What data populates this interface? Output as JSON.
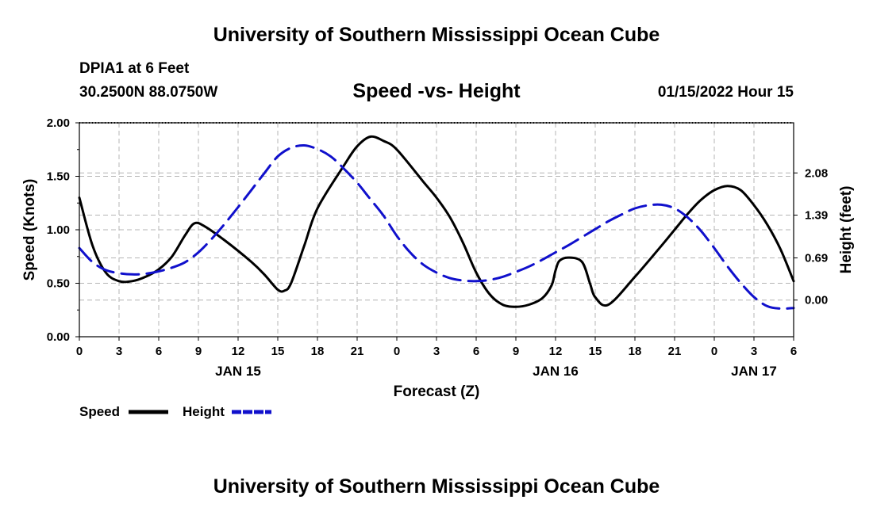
{
  "header": {
    "main_title": "University of Southern Mississippi Ocean Cube",
    "station": "DPIA1 at 6 Feet",
    "coords": "30.2500N  88.0750W",
    "subtitle": "Speed -vs- Height",
    "datetime": "01/15/2022 Hour 15"
  },
  "footer": {
    "title": "University of Southern Mississippi Ocean Cube"
  },
  "colors": {
    "speed": "#000000",
    "height": "#1010cc",
    "grid": "#b4b4b4"
  },
  "chart_data": {
    "type": "line",
    "title": "Speed -vs- Height",
    "xlabel": "Forecast (Z)",
    "ylabel": "Speed (Knots)",
    "y2label": "Height (feet)",
    "xlim": [
      0,
      54
    ],
    "ylim": [
      0,
      2.0
    ],
    "y2lim": [
      -0.6,
      2.9
    ],
    "x_ticks": [
      0,
      3,
      6,
      9,
      12,
      15,
      18,
      21,
      24,
      27,
      30,
      33,
      36,
      39,
      42,
      45,
      48,
      51,
      54
    ],
    "x_tick_labels": [
      "0",
      "3",
      "6",
      "9",
      "12",
      "15",
      "18",
      "21",
      "0",
      "3",
      "6",
      "9",
      "12",
      "15",
      "18",
      "21",
      "0",
      "3",
      "6"
    ],
    "date_labels": [
      {
        "x": 12,
        "label": "JAN 15"
      },
      {
        "x": 36,
        "label": "JAN 16"
      },
      {
        "x": 51,
        "label": "JAN 17"
      }
    ],
    "y_ticks": [
      0,
      0.5,
      1.0,
      1.5,
      2.0
    ],
    "y_tick_labels": [
      "0.00",
      "0.50",
      "1.00",
      "1.50",
      "2.00"
    ],
    "y2_ticks": [
      0.0,
      0.69,
      1.39,
      2.08
    ],
    "y2_tick_labels": [
      "0.00",
      "0.69",
      "1.39",
      "2.08"
    ],
    "grid": true,
    "legend_position": "bottom-left",
    "series": [
      {
        "name": "Speed",
        "axis": "left",
        "style": "solid",
        "x": [
          0,
          1,
          2,
          3,
          4,
          5,
          6,
          7,
          8,
          8.7,
          9.5,
          11,
          13,
          14,
          15,
          15.5,
          16,
          17,
          18,
          20,
          21,
          22,
          23,
          24,
          26,
          27,
          28,
          29,
          30,
          31,
          32,
          33,
          34,
          35,
          35.7,
          36,
          36.3,
          37,
          38,
          38.6,
          39,
          40,
          42,
          44,
          45,
          46,
          47,
          48,
          49,
          50,
          51,
          52,
          53,
          54
        ],
        "values": [
          1.3,
          0.85,
          0.6,
          0.52,
          0.52,
          0.56,
          0.63,
          0.75,
          0.95,
          1.06,
          1.03,
          0.9,
          0.7,
          0.58,
          0.44,
          0.43,
          0.5,
          0.85,
          1.2,
          1.6,
          1.78,
          1.87,
          1.83,
          1.75,
          1.45,
          1.3,
          1.12,
          0.88,
          0.6,
          0.4,
          0.3,
          0.28,
          0.3,
          0.36,
          0.48,
          0.62,
          0.71,
          0.74,
          0.7,
          0.5,
          0.37,
          0.3,
          0.56,
          0.85,
          1.0,
          1.15,
          1.28,
          1.37,
          1.41,
          1.37,
          1.23,
          1.05,
          0.82,
          0.52
        ]
      },
      {
        "name": "Height",
        "axis": "right",
        "style": "dashed",
        "x": [
          0,
          1,
          2,
          3,
          4,
          5,
          6,
          7,
          8,
          9,
          10,
          11,
          12,
          13,
          14,
          15,
          16,
          17,
          18,
          19,
          20,
          21,
          22,
          23,
          24,
          25,
          26,
          27,
          28,
          29,
          30,
          31,
          32,
          33,
          34,
          35,
          36,
          37,
          38,
          39,
          40,
          41,
          42,
          43,
          44,
          45,
          46,
          47,
          48,
          49,
          50,
          51,
          52,
          53,
          54
        ],
        "values": [
          0.85,
          0.62,
          0.49,
          0.44,
          0.42,
          0.43,
          0.47,
          0.53,
          0.62,
          0.78,
          1.0,
          1.25,
          1.52,
          1.8,
          2.08,
          2.35,
          2.49,
          2.53,
          2.47,
          2.35,
          2.15,
          1.92,
          1.65,
          1.38,
          1.05,
          0.78,
          0.58,
          0.45,
          0.36,
          0.32,
          0.31,
          0.33,
          0.38,
          0.46,
          0.55,
          0.66,
          0.78,
          0.9,
          1.03,
          1.16,
          1.29,
          1.4,
          1.5,
          1.55,
          1.56,
          1.5,
          1.35,
          1.13,
          0.85,
          0.55,
          0.28,
          0.05,
          -0.1,
          -0.14,
          -0.13
        ]
      }
    ]
  },
  "legend": [
    {
      "label": "Speed"
    },
    {
      "label": "Height"
    }
  ]
}
